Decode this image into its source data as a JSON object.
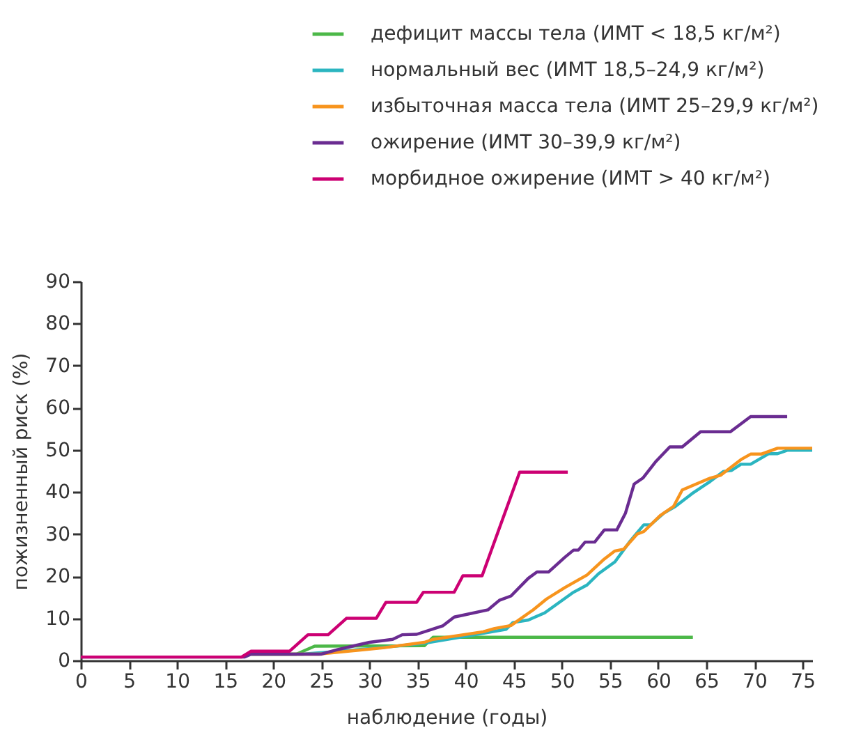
{
  "chart_data": {
    "type": "line",
    "xlabel": "наблюдение (годы)",
    "ylabel": "пожизненный риск (%)",
    "xlim": [
      0,
      76
    ],
    "xticks": [
      0,
      5,
      10,
      15,
      20,
      25,
      30,
      35,
      40,
      45,
      50,
      55,
      60,
      65,
      70,
      75
    ],
    "ylim": [
      0,
      90
    ],
    "yticks": [
      0,
      10,
      20,
      30,
      40,
      50,
      60,
      70,
      80,
      90
    ],
    "grid": false,
    "legend": "top",
    "marker": "none",
    "line_style": "solid",
    "series": [
      {
        "name": "дефицит массы тела (ИМТ < 18,5 кг/м²)",
        "color": "#4cb848",
        "x": [
          17.7,
          22.4,
          24.3,
          35.7,
          36.6,
          63.6
        ],
        "values": [
          1.5,
          1.5,
          3.4,
          3.5,
          5.5,
          5.5
        ]
      },
      {
        "name": "нормальный вес (ИМТ 18,5–24,9 кг/м²)",
        "color": "#2bb5c0",
        "x": [
          17.7,
          23,
          27,
          31,
          35.7,
          39.9,
          44.2,
          44.9,
          46.5,
          48.2,
          51.2,
          52.6,
          53.8,
          55.5,
          57.1,
          58.5,
          59.2,
          60.6,
          61.8,
          63.5,
          65.4,
          66.8,
          67.6,
          68.6,
          69.6,
          71.5,
          72.4,
          73.4,
          76
        ],
        "values": [
          1.5,
          1.5,
          2.2,
          3,
          4.1,
          5.7,
          7.4,
          9,
          9.6,
          11.3,
          16.2,
          17.9,
          20.6,
          23.4,
          28.4,
          32.2,
          32.2,
          35,
          36.6,
          39.6,
          42.5,
          44.9,
          45.1,
          46.6,
          46.6,
          49.1,
          49.1,
          49.9,
          49.9
        ]
      },
      {
        "name": "избыточная масса тела (ИМТ 25–29,9 кг/м²)",
        "color": "#f7941d",
        "x": [
          17.7,
          24.8,
          31.4,
          35.7,
          36.6,
          41.8,
          43,
          44.7,
          47,
          48.4,
          50.3,
          52.6,
          54.3,
          55.5,
          56.4,
          57.8,
          58.5,
          60.2,
          61.6,
          62.5,
          65.4,
          66.5,
          68.6,
          69.6,
          70.7,
          72.4,
          76
        ],
        "values": [
          1.5,
          1.5,
          3,
          4.3,
          5,
          6.8,
          7.6,
          8.3,
          12,
          14.6,
          17.3,
          20.3,
          23.9,
          26,
          26.4,
          30,
          30.6,
          34.4,
          36.6,
          40.5,
          43.3,
          44,
          47.7,
          49,
          49,
          50.4,
          50.4
        ]
      },
      {
        "name": "ожирение (ИМТ 30–39,9 кг/м²)",
        "color": "#6a2c91",
        "x": [
          0,
          17,
          17.7,
          25,
          26.7,
          30,
          32.4,
          33.4,
          34.9,
          37.6,
          38.8,
          42.3,
          43.5,
          44.7,
          46.5,
          47.4,
          48.6,
          50.3,
          51.2,
          51.7,
          52.4,
          53.4,
          54.4,
          55.7,
          56.6,
          57.5,
          58.4,
          59.7,
          61.2,
          62.5,
          64.4,
          67.5,
          69.6,
          73.4
        ],
        "values": [
          0.8,
          0.8,
          1.5,
          1.5,
          2.6,
          4.3,
          5,
          6.1,
          6.2,
          8.2,
          10.3,
          12,
          14.3,
          15.3,
          19.5,
          21,
          21,
          24.5,
          26.2,
          26.2,
          28.1,
          28.1,
          31,
          31,
          35,
          41.9,
          43.3,
          47.1,
          50.7,
          50.7,
          54.3,
          54.3,
          57.9,
          57.9
        ]
      },
      {
        "name": "морбидное ожирение (ИМТ > 40 кг/м²)",
        "color": "#cc0073",
        "x": [
          0,
          16.7,
          17.7,
          21.7,
          23.6,
          25.7,
          27.6,
          30.7,
          31.7,
          34.9,
          35.6,
          38.8,
          39.7,
          41.7,
          45.6,
          50.6
        ],
        "values": [
          0.8,
          0.8,
          2.2,
          2.2,
          6.1,
          6.1,
          10,
          10,
          13.8,
          13.8,
          16.2,
          16.2,
          20.1,
          20.1,
          44.7,
          44.7
        ]
      }
    ]
  }
}
